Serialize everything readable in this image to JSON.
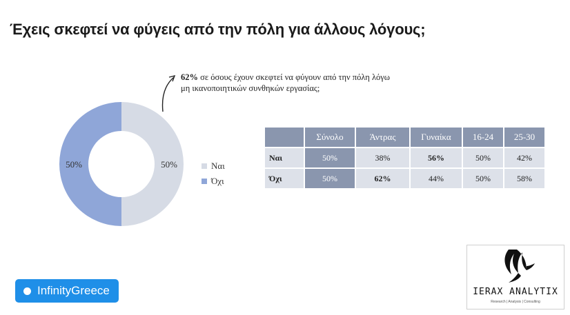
{
  "title": "Έχεις σκεφτεί να φύγεις από την πόλη για άλλους λόγους;",
  "callout": {
    "percent": "62%",
    "text": "σε όσους έχουν σκεφτεί να φύγουν από την πόλη λόγω μη ικανοποιητικών συνθηκών εργασίας;"
  },
  "chart_data": {
    "type": "pie",
    "categories": [
      "Ναι",
      "Όχι"
    ],
    "values": [
      50,
      50
    ],
    "labels": [
      "50%",
      "50%"
    ],
    "colors": [
      "#d6dbe5",
      "#8fa6d8"
    ],
    "legend_position": "right"
  },
  "table": {
    "headers": [
      "",
      "Σύνολο",
      "Άντρας",
      "Γυναίκα",
      "16-24",
      "25-30"
    ],
    "rows": [
      {
        "label": "Ναι",
        "cells": [
          "50%",
          "38%",
          "56%",
          "50%",
          "42%"
        ]
      },
      {
        "label": "Όχι",
        "cells": [
          "50%",
          "62%",
          "44%",
          "50%",
          "58%"
        ]
      }
    ],
    "header_color": "#8a96ae",
    "cell_color": "#dde1e9"
  },
  "brand": {
    "pill_text": "InfinityGreece",
    "pill_color": "#1f8fe8",
    "logo_text": "IERAX ANALYTIX",
    "logo_sub": "Research | Analysis | Consulting",
    "logo_icon": "hawk-icon"
  }
}
